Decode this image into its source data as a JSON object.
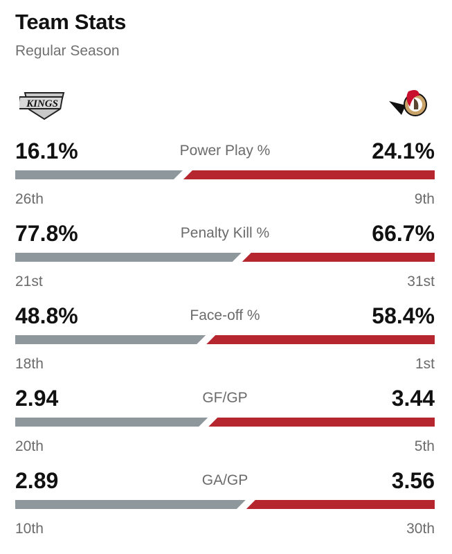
{
  "header": {
    "title": "Team Stats",
    "subtitle": "Regular Season"
  },
  "teams": {
    "left": {
      "name": "Los Angeles Kings",
      "logo": "kings-logo",
      "logo_text": "KINGS",
      "color": "#8e979c"
    },
    "right": {
      "name": "Ottawa Senators",
      "logo": "senators-logo",
      "color": "#b5262f"
    }
  },
  "stats": [
    {
      "label": "Power Play %",
      "left_value": "16.1%",
      "right_value": "24.1%",
      "left_rank": "26th",
      "right_rank": "9th",
      "left_share": 0.4
    },
    {
      "label": "Penalty Kill %",
      "left_value": "77.8%",
      "right_value": "66.7%",
      "left_rank": "21st",
      "right_rank": "31st",
      "left_share": 0.54
    },
    {
      "label": "Face-off %",
      "left_value": "48.8%",
      "right_value": "58.4%",
      "left_rank": "18th",
      "right_rank": "1st",
      "left_share": 0.455
    },
    {
      "label": "GF/GP",
      "left_value": "2.94",
      "right_value": "3.44",
      "left_rank": "20th",
      "right_rank": "5th",
      "left_share": 0.46
    },
    {
      "label": "GA/GP",
      "left_value": "2.89",
      "right_value": "3.56",
      "left_rank": "10th",
      "right_rank": "30th",
      "left_share": 0.55
    }
  ]
}
